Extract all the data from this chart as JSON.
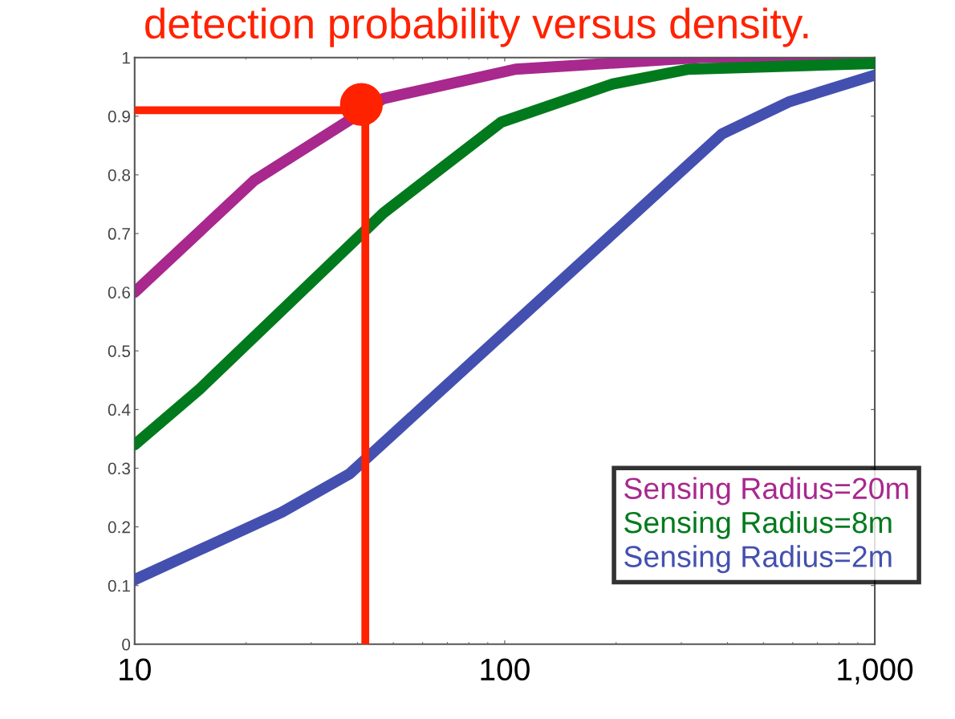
{
  "chart_data": {
    "type": "line",
    "title": "detection probability versus density.",
    "log": "x",
    "xlim": [
      10,
      1000
    ],
    "xticks": [
      {
        "value": 10,
        "label": "10"
      },
      {
        "value": 100,
        "label": "100"
      },
      {
        "value": 1000,
        "label": "1,000"
      }
    ],
    "ylim": [
      0,
      1
    ],
    "yticks": [
      0,
      {
        "value": 0.1,
        "label": "0.1"
      },
      {
        "value": 0.2,
        "label": "0.2"
      },
      {
        "value": 0.3,
        "label": "0.3"
      },
      {
        "value": 0.4,
        "label": "0.4"
      },
      {
        "value": 0.5,
        "label": "0.5"
      },
      {
        "value": 0.6,
        "label": "0.6"
      },
      {
        "value": 0.7,
        "label": "0.7"
      },
      {
        "value": 0.8,
        "label": "0.8"
      },
      {
        "value": 0.9,
        "label": "0.9"
      },
      1
    ],
    "grid": false,
    "legend": "bottom right",
    "marker": "none",
    "line_style": "solid",
    "series": [
      {
        "name": "Sensing Radius=20m",
        "color": "#a8288e",
        "x": [
          10,
          21,
          47,
          107,
          340,
          1000
        ],
        "values": [
          0.6,
          0.79,
          0.93,
          0.98,
          1.0,
          1.0
        ]
      },
      {
        "name": "Sensing Radius=8m",
        "color": "#007a1c",
        "x": [
          10,
          15,
          47,
          98,
          196,
          314,
          1000
        ],
        "values": [
          0.34,
          0.435,
          0.735,
          0.89,
          0.955,
          0.98,
          0.99
        ]
      },
      {
        "name": "Sensing Radius=2m",
        "color": "#4450b0",
        "x": [
          10,
          25,
          38,
          387,
          589,
          1000
        ],
        "values": [
          0.11,
          0.225,
          0.29,
          0.87,
          0.925,
          0.97
        ]
      },
      {
        "color": "#ff2200",
        "x": [
          10,
          42,
          42
        ],
        "values": [
          0.91,
          0.91,
          0
        ]
      },
      {
        "type": "scatter",
        "color": "#ff2200",
        "marker": "circle",
        "x": [
          41
        ],
        "values": [
          0.92
        ]
      }
    ]
  }
}
